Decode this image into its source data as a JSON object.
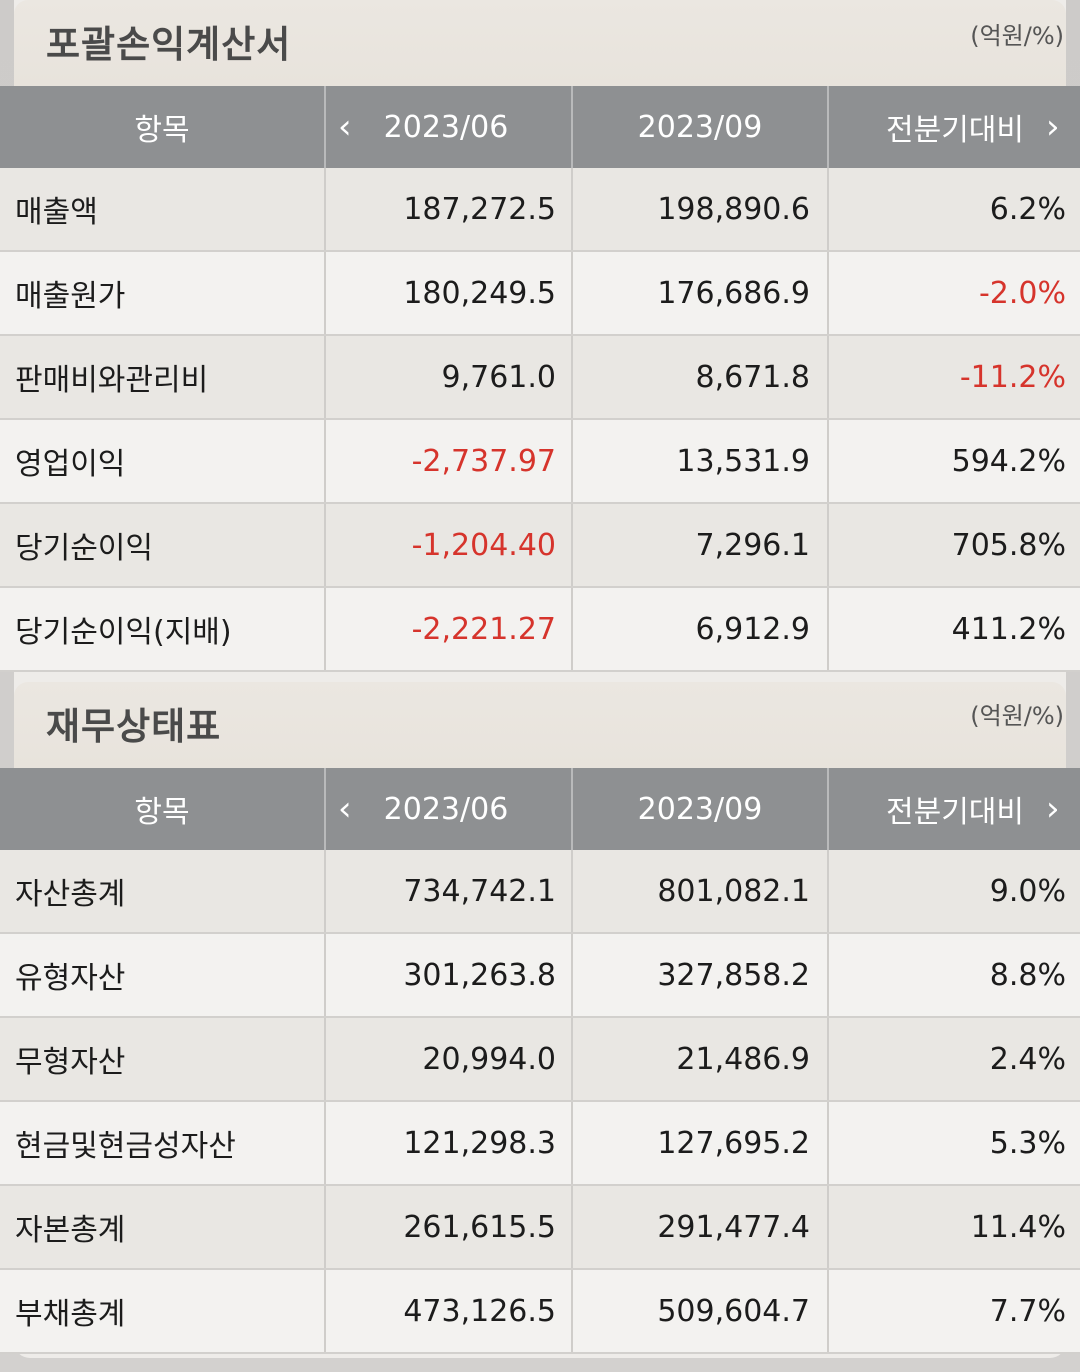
{
  "income_statement": {
    "title": "포괄손익계산서",
    "unit": "(억원/%)",
    "columns": [
      "항목",
      "2023/06",
      "2023/09",
      "전분기대비"
    ],
    "rows": [
      {
        "label": "매출액",
        "v1": "187,272.5",
        "v2": "198,890.6",
        "chg": "6.2%",
        "v1_neg": false,
        "chg_neg": false
      },
      {
        "label": "매출원가",
        "v1": "180,249.5",
        "v2": "176,686.9",
        "chg": "-2.0%",
        "v1_neg": false,
        "chg_neg": true
      },
      {
        "label": "판매비와관리비",
        "v1": "9,761.0",
        "v2": "8,671.8",
        "chg": "-11.2%",
        "v1_neg": false,
        "chg_neg": true
      },
      {
        "label": "영업이익",
        "v1": "-2,737.97",
        "v2": "13,531.9",
        "chg": "594.2%",
        "v1_neg": true,
        "chg_neg": false
      },
      {
        "label": "당기순이익",
        "v1": "-1,204.40",
        "v2": "7,296.1",
        "chg": "705.8%",
        "v1_neg": true,
        "chg_neg": false
      },
      {
        "label": "당기순이익(지배)",
        "v1": "-2,221.27",
        "v2": "6,912.9",
        "chg": "411.2%",
        "v1_neg": true,
        "chg_neg": false
      }
    ]
  },
  "balance_sheet": {
    "title": "재무상태표",
    "unit": "(억원/%)",
    "columns": [
      "항목",
      "2023/06",
      "2023/09",
      "전분기대비"
    ],
    "rows": [
      {
        "label": "자산총계",
        "v1": "734,742.1",
        "v2": "801,082.1",
        "chg": "9.0%",
        "v1_neg": false,
        "chg_neg": false
      },
      {
        "label": "유형자산",
        "v1": "301,263.8",
        "v2": "327,858.2",
        "chg": "8.8%",
        "v1_neg": false,
        "chg_neg": false
      },
      {
        "label": "무형자산",
        "v1": "20,994.0",
        "v2": "21,486.9",
        "chg": "2.4%",
        "v1_neg": false,
        "chg_neg": false
      },
      {
        "label": "현금및현금성자산",
        "v1": "121,298.3",
        "v2": "127,695.2",
        "chg": "5.3%",
        "v1_neg": false,
        "chg_neg": false
      },
      {
        "label": "자본총계",
        "v1": "261,615.5",
        "v2": "291,477.4",
        "chg": "11.4%",
        "v1_neg": false,
        "chg_neg": false
      },
      {
        "label": "부채총계",
        "v1": "473,126.5",
        "v2": "509,604.7",
        "chg": "7.7%",
        "v1_neg": false,
        "chg_neg": false
      }
    ]
  },
  "icons": {
    "prev": "chevron-left-icon",
    "next": "chevron-right-icon"
  },
  "colors": {
    "negative": "#d6342c",
    "header_bg": "#8e9092"
  }
}
